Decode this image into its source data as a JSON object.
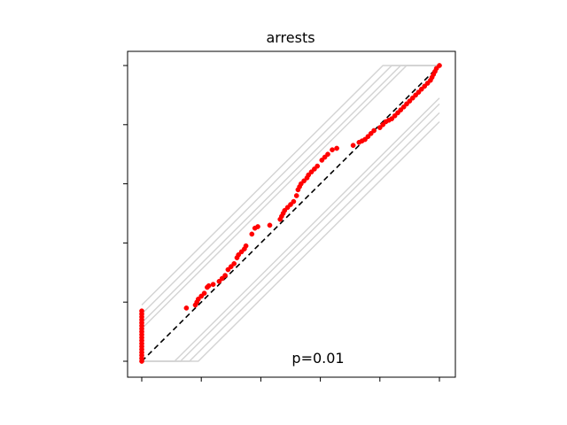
{
  "chart_data": {
    "type": "scatter",
    "title": "arrests",
    "xlabel": "",
    "ylabel": "",
    "xlim": [
      -0.05,
      1.05
    ],
    "ylim": [
      -0.05,
      1.0
    ],
    "grid": false,
    "legend": "none",
    "annotation": "p=0.01",
    "colors": {
      "points": "#ff0000",
      "identity_line": "#000000",
      "envelope": "#d3d3d3"
    },
    "identity_line": {
      "x": [
        0,
        1
      ],
      "y": [
        0,
        1
      ]
    },
    "envelope_offsets": [
      0.11,
      0.13,
      0.16,
      0.19
    ],
    "series": [
      {
        "values": [
          [
            0,
            0.0
          ],
          [
            0,
            0.01
          ],
          [
            0,
            0.02
          ],
          [
            0,
            0.03
          ],
          [
            0,
            0.04
          ],
          [
            0,
            0.05
          ],
          [
            0,
            0.06
          ],
          [
            0,
            0.07
          ],
          [
            0,
            0.08
          ],
          [
            0,
            0.09
          ],
          [
            0,
            0.1
          ],
          [
            0,
            0.11
          ],
          [
            0,
            0.12
          ],
          [
            0,
            0.13
          ],
          [
            0,
            0.14
          ],
          [
            0,
            0.15
          ],
          [
            0,
            0.16
          ],
          [
            0,
            0.17
          ],
          [
            0.15,
            0.18
          ],
          [
            0.18,
            0.19
          ],
          [
            0.185,
            0.2
          ],
          [
            0.19,
            0.21
          ],
          [
            0.2,
            0.22
          ],
          [
            0.21,
            0.23
          ],
          [
            0.22,
            0.25
          ],
          [
            0.225,
            0.255
          ],
          [
            0.24,
            0.26
          ],
          [
            0.26,
            0.27
          ],
          [
            0.27,
            0.28
          ],
          [
            0.28,
            0.29
          ],
          [
            0.29,
            0.31
          ],
          [
            0.3,
            0.32
          ],
          [
            0.31,
            0.33
          ],
          [
            0.32,
            0.35
          ],
          [
            0.325,
            0.36
          ],
          [
            0.335,
            0.37
          ],
          [
            0.345,
            0.38
          ],
          [
            0.35,
            0.39
          ],
          [
            0.37,
            0.43
          ],
          [
            0.38,
            0.45
          ],
          [
            0.39,
            0.455
          ],
          [
            0.43,
            0.46
          ],
          [
            0.465,
            0.48
          ],
          [
            0.47,
            0.49
          ],
          [
            0.475,
            0.5
          ],
          [
            0.48,
            0.51
          ],
          [
            0.49,
            0.52
          ],
          [
            0.5,
            0.53
          ],
          [
            0.51,
            0.54
          ],
          [
            0.52,
            0.56
          ],
          [
            0.525,
            0.58
          ],
          [
            0.53,
            0.59
          ],
          [
            0.535,
            0.6
          ],
          [
            0.545,
            0.61
          ],
          [
            0.555,
            0.62
          ],
          [
            0.56,
            0.63
          ],
          [
            0.57,
            0.64
          ],
          [
            0.58,
            0.65
          ],
          [
            0.59,
            0.66
          ],
          [
            0.605,
            0.68
          ],
          [
            0.615,
            0.69
          ],
          [
            0.625,
            0.7
          ],
          [
            0.64,
            0.715
          ],
          [
            0.655,
            0.72
          ],
          [
            0.71,
            0.73
          ],
          [
            0.73,
            0.74
          ],
          [
            0.74,
            0.745
          ],
          [
            0.75,
            0.75
          ],
          [
            0.76,
            0.76
          ],
          [
            0.77,
            0.77
          ],
          [
            0.78,
            0.78
          ],
          [
            0.8,
            0.79
          ],
          [
            0.81,
            0.8
          ],
          [
            0.82,
            0.81
          ],
          [
            0.83,
            0.815
          ],
          [
            0.84,
            0.82
          ],
          [
            0.85,
            0.83
          ],
          [
            0.86,
            0.84
          ],
          [
            0.87,
            0.85
          ],
          [
            0.88,
            0.86
          ],
          [
            0.89,
            0.87
          ],
          [
            0.9,
            0.88
          ],
          [
            0.91,
            0.89
          ],
          [
            0.92,
            0.9
          ],
          [
            0.93,
            0.91
          ],
          [
            0.94,
            0.92
          ],
          [
            0.95,
            0.93
          ],
          [
            0.96,
            0.94
          ],
          [
            0.97,
            0.95
          ],
          [
            0.975,
            0.96
          ],
          [
            0.98,
            0.97
          ],
          [
            0.985,
            0.98
          ],
          [
            0.99,
            0.99
          ],
          [
            1.0,
            1.0
          ]
        ]
      }
    ]
  }
}
